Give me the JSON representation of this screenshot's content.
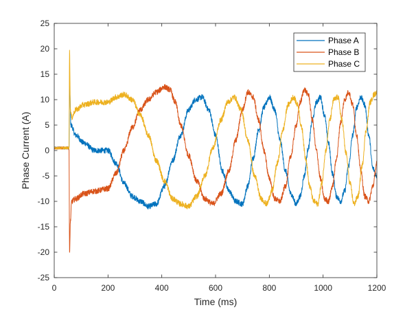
{
  "chart_data": {
    "type": "line",
    "title": "",
    "xlabel": "Time (ms)",
    "ylabel": "Phase Current (A)",
    "xlim": [
      0,
      1200
    ],
    "ylim": [
      -25,
      25
    ],
    "xticks": [
      0,
      200,
      400,
      600,
      800,
      1000,
      1200
    ],
    "yticks": [
      -25,
      -20,
      -15,
      -10,
      -5,
      0,
      5,
      10,
      15,
      20,
      25
    ],
    "grid": false,
    "legend_position": "top-right",
    "series": [
      {
        "name": "Phase A",
        "color": "#0072BD",
        "x": [
          0,
          55,
          57,
          62,
          80,
          110,
          150,
          200,
          230,
          260,
          290,
          320,
          350,
          380,
          410,
          440,
          470,
          500,
          525,
          550,
          575,
          600,
          625,
          650,
          675,
          700,
          720,
          740,
          760,
          780,
          800,
          820,
          840,
          860,
          880,
          900,
          915,
          930,
          945,
          960,
          975,
          990,
          1005,
          1020,
          1035,
          1050,
          1065,
          1080,
          1095,
          1110,
          1125,
          1140,
          1155,
          1170,
          1185,
          1200
        ],
        "y": [
          0.5,
          0.5,
          13,
          5,
          3,
          1.5,
          0,
          0,
          -2.5,
          -6.5,
          -9,
          -10,
          -11,
          -10.5,
          -7,
          -2,
          3,
          8,
          10,
          10.5,
          8,
          3,
          -4,
          -8,
          -10,
          -10.5,
          -7,
          -1.5,
          4,
          8.5,
          10.5,
          8,
          2,
          -4,
          -8.5,
          -10.5,
          -9,
          -5,
          0.5,
          6,
          9.5,
          10.5,
          7,
          1.5,
          -4.5,
          -9,
          -10,
          -8,
          -3,
          3,
          8.5,
          10.5,
          9,
          3,
          -3.5,
          -5
        ]
      },
      {
        "name": "Phase B",
        "color": "#D95319",
        "x": [
          0,
          55,
          57,
          60,
          65,
          80,
          110,
          150,
          200,
          230,
          260,
          290,
          320,
          350,
          380,
          410,
          430,
          450,
          470,
          500,
          530,
          560,
          590,
          620,
          650,
          675,
          700,
          720,
          740,
          760,
          780,
          800,
          820,
          840,
          860,
          880,
          900,
          915,
          930,
          945,
          960,
          975,
          990,
          1005,
          1020,
          1035,
          1050,
          1065,
          1080,
          1095,
          1110,
          1125,
          1140,
          1155,
          1170,
          1185,
          1200
        ],
        "y": [
          0.5,
          0.5,
          -20.5,
          -14,
          -10,
          -9.5,
          -8.5,
          -8,
          -7.5,
          -4.5,
          0,
          4.5,
          8,
          10,
          11.5,
          12.5,
          12,
          9.5,
          5,
          -1,
          -6,
          -9.5,
          -10.5,
          -8.5,
          -4,
          2,
          8,
          11.5,
          10.5,
          6,
          0,
          -5.5,
          -9.5,
          -10,
          -7,
          -1,
          5,
          9.5,
          12,
          11,
          6,
          0,
          -5.5,
          -9.5,
          -10,
          -7,
          -1.5,
          5.5,
          10,
          11.5,
          9,
          3,
          -4,
          -9,
          -10,
          -7,
          -2.5
        ]
      },
      {
        "name": "Phase C",
        "color": "#EDB120",
        "x": [
          0,
          55,
          57,
          60,
          65,
          80,
          110,
          150,
          200,
          230,
          260,
          290,
          320,
          350,
          380,
          410,
          440,
          470,
          500,
          530,
          560,
          590,
          620,
          645,
          670,
          695,
          720,
          745,
          770,
          790,
          810,
          830,
          850,
          870,
          890,
          905,
          920,
          935,
          950,
          965,
          980,
          995,
          1010,
          1025,
          1040,
          1055,
          1070,
          1085,
          1100,
          1115,
          1130,
          1145,
          1160,
          1175,
          1190,
          1200
        ],
        "y": [
          0.5,
          0.5,
          20,
          8,
          6.5,
          8,
          9,
          9.5,
          9.5,
          10.5,
          11,
          10,
          7,
          3,
          -2,
          -6,
          -9.5,
          -10.5,
          -11,
          -9,
          -5,
          0.5,
          6,
          9.5,
          10.5,
          8,
          2,
          -5,
          -9.5,
          -10.5,
          -8,
          -2.5,
          4,
          9,
          10.5,
          9,
          4.5,
          -1.5,
          -7,
          -10,
          -10.5,
          -6.5,
          0,
          6,
          10,
          10.5,
          6,
          -0.5,
          -6.5,
          -10.5,
          -9,
          -3,
          4,
          9.5,
          11,
          11.5
        ]
      }
    ]
  }
}
